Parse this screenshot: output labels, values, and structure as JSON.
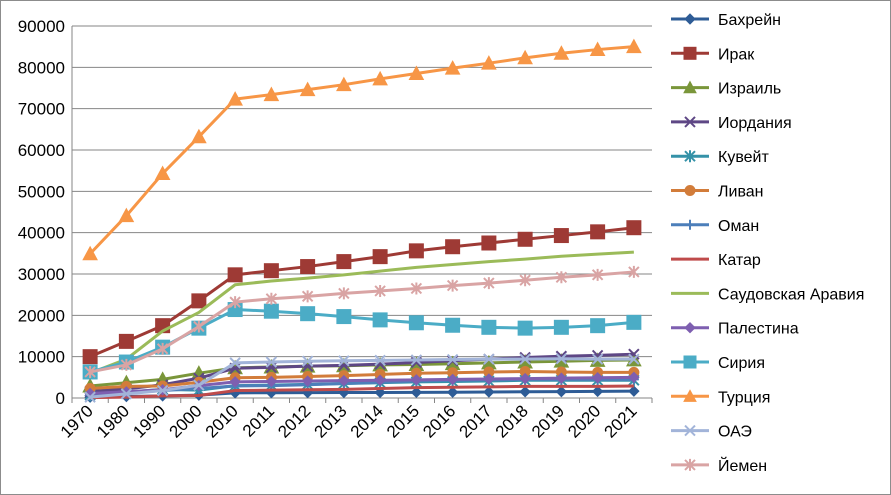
{
  "chart_data": {
    "type": "line",
    "title": "",
    "xlabel": "",
    "ylabel": "",
    "categories": [
      "1970",
      "1980",
      "1990",
      "2000",
      "2010",
      "2011",
      "2012",
      "2013",
      "2014",
      "2015",
      "2016",
      "2017",
      "2018",
      "2019",
      "2020",
      "2021"
    ],
    "ylim": [
      0,
      90000
    ],
    "yticks": [
      0,
      10000,
      20000,
      30000,
      40000,
      50000,
      60000,
      70000,
      80000,
      90000
    ],
    "grid": "horizontal",
    "legend_position": "right",
    "series": [
      {
        "name": "Бахрейн",
        "color": "#2e5c96",
        "marker": "diamond",
        "values": [
          200,
          350,
          500,
          700,
          1230,
          1280,
          1300,
          1320,
          1340,
          1370,
          1400,
          1450,
          1500,
          1540,
          1600,
          1650
        ]
      },
      {
        "name": "Ирак",
        "color": "#9e3a35",
        "marker": "square",
        "values": [
          10000,
          13700,
          17500,
          23500,
          29800,
          30800,
          31800,
          33000,
          34200,
          35600,
          36600,
          37500,
          38400,
          39300,
          40200,
          41200
        ]
      },
      {
        "name": "Израиль",
        "color": "#7a963a",
        "marker": "triangle",
        "values": [
          2900,
          3700,
          4500,
          6000,
          7300,
          7500,
          7700,
          7800,
          8000,
          8100,
          8300,
          8500,
          8700,
          8900,
          9100,
          9200
        ]
      },
      {
        "name": "Иордания",
        "color": "#5e4785",
        "marker": "x",
        "values": [
          1600,
          2200,
          3200,
          4800,
          7200,
          7400,
          7700,
          7900,
          8200,
          8600,
          9000,
          9400,
          9800,
          10100,
          10300,
          10600
        ]
      },
      {
        "name": "Кувейт",
        "color": "#3592a8",
        "marker": "star",
        "values": [
          700,
          1400,
          2100,
          1900,
          3000,
          3100,
          3300,
          3500,
          3700,
          3900,
          4000,
          4100,
          4300,
          4300,
          4300,
          4300
        ]
      },
      {
        "name": "Ливан",
        "color": "#d27c3a",
        "marker": "circle",
        "values": [
          2300,
          2800,
          2900,
          3800,
          4900,
          5000,
          5200,
          5400,
          5700,
          6000,
          6100,
          6300,
          6400,
          6300,
          6200,
          6200
        ]
      },
      {
        "name": "Оман",
        "color": "#4c7fba",
        "marker": "plus",
        "values": [
          700,
          1200,
          1800,
          2300,
          2900,
          3000,
          3200,
          3500,
          3800,
          4100,
          4300,
          4400,
          4500,
          4500,
          4500,
          4500
        ]
      },
      {
        "name": "Катар",
        "color": "#bf4b4b",
        "marker": "line",
        "values": [
          100,
          200,
          500,
          600,
          1800,
          1900,
          2000,
          2100,
          2300,
          2500,
          2600,
          2700,
          2800,
          2800,
          2800,
          2900
        ]
      },
      {
        "name": "Саудовская Аравия",
        "color": "#9bbb59",
        "marker": "line",
        "values": [
          6000,
          9400,
          16200,
          20700,
          27400,
          28300,
          29000,
          29800,
          30700,
          31600,
          32300,
          33000,
          33600,
          34300,
          34800,
          35300
        ]
      },
      {
        "name": "Палестина",
        "color": "#7e5fb0",
        "marker": "diamond",
        "values": [
          1100,
          1500,
          2000,
          3000,
          3900,
          4000,
          4100,
          4200,
          4300,
          4400,
          4500,
          4600,
          4700,
          4800,
          4900,
          5000
        ]
      },
      {
        "name": "Сирия",
        "color": "#4bacc6",
        "marker": "square",
        "values": [
          6300,
          8700,
          12300,
          16900,
          21400,
          21000,
          20400,
          19700,
          18900,
          18200,
          17600,
          17100,
          16900,
          17100,
          17500,
          18300
        ]
      },
      {
        "name": "Турция",
        "color": "#f79646",
        "marker": "triangle",
        "values": [
          34900,
          44100,
          54300,
          63200,
          72300,
          73400,
          74600,
          75800,
          77200,
          78500,
          79800,
          81000,
          82300,
          83400,
          84300,
          85000
        ]
      },
      {
        "name": "ОАЭ",
        "color": "#a2b4d9",
        "marker": "x",
        "values": [
          200,
          1000,
          1800,
          3100,
          8500,
          8700,
          8900,
          9000,
          9100,
          9200,
          9300,
          9400,
          9400,
          9500,
          9400,
          9400
        ]
      },
      {
        "name": "Йемен",
        "color": "#d9a4a4",
        "marker": "star",
        "values": [
          6300,
          8000,
          11900,
          17300,
          23200,
          24000,
          24600,
          25300,
          25900,
          26500,
          27200,
          27800,
          28500,
          29200,
          29800,
          30500
        ]
      }
    ]
  }
}
